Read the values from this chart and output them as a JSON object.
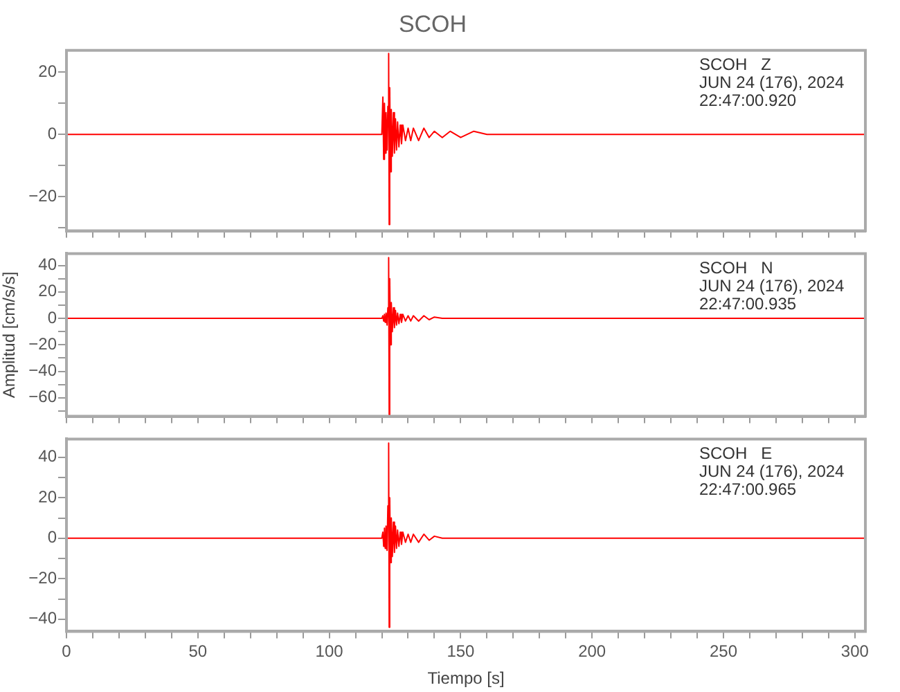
{
  "chart_data": [
    {
      "type": "line",
      "title": "SCOH",
      "grid": false,
      "tick_labels": "y",
      "x": [
        0,
        10,
        20,
        30,
        40,
        50,
        60,
        70,
        80,
        90,
        100,
        110,
        118,
        120,
        120.4,
        120.7,
        121,
        121.3,
        121.6,
        122,
        122.3,
        122.6,
        122.8,
        123,
        123.3,
        123.6,
        124,
        124.4,
        124.8,
        125.2,
        125.6,
        126,
        126.5,
        127,
        127.5,
        128,
        129,
        130,
        131,
        132,
        134,
        136,
        138,
        140,
        143,
        146,
        150,
        155,
        160,
        170,
        180,
        200,
        220,
        240,
        260,
        280,
        300,
        304
      ],
      "series": [
        {
          "color": "#ff0000",
          "values": [
            0,
            0,
            0,
            0,
            0,
            0,
            0,
            0,
            0,
            0,
            0,
            0,
            0,
            0,
            12,
            -8,
            10,
            -6,
            7,
            -5,
            9,
            26,
            -29,
            15,
            -12,
            8,
            -7,
            7,
            -6,
            5,
            -5,
            4,
            -4,
            3,
            -3,
            3,
            -2,
            2,
            -2,
            2,
            -2,
            2,
            -1,
            1,
            -1,
            1,
            -1,
            1,
            0,
            0,
            0,
            0,
            0,
            0,
            0,
            0,
            0,
            0
          ]
        }
      ],
      "xlim": [
        0,
        304
      ],
      "xticks": [
        0,
        {
          "value": 10,
          "label": null
        },
        {
          "value": 20,
          "label": null
        },
        {
          "value": 30,
          "label": null
        },
        {
          "value": 40,
          "label": null
        },
        50,
        {
          "value": 60,
          "label": null
        },
        {
          "value": 70,
          "label": null
        },
        {
          "value": 80,
          "label": null
        },
        {
          "value": 90,
          "label": null
        },
        100,
        {
          "value": 110,
          "label": null
        },
        {
          "value": 120,
          "label": null
        },
        {
          "value": 130,
          "label": null
        },
        {
          "value": 140,
          "label": null
        },
        150,
        {
          "value": 160,
          "label": null
        },
        {
          "value": 170,
          "label": null
        },
        {
          "value": 180,
          "label": null
        },
        {
          "value": 190,
          "label": null
        },
        200,
        {
          "value": 210,
          "label": null
        },
        {
          "value": 220,
          "label": null
        },
        {
          "value": 230,
          "label": null
        },
        {
          "value": 240,
          "label": null
        },
        250,
        {
          "value": 260,
          "label": null
        },
        {
          "value": 270,
          "label": null
        },
        {
          "value": 280,
          "label": null
        },
        {
          "value": 290,
          "label": null
        },
        300
      ],
      "ylim": [
        -31,
        27
      ],
      "yticks": [
        {
          "value": -30,
          "label": null
        },
        -20,
        {
          "value": -10,
          "label": null
        },
        0,
        {
          "value": 10,
          "label": null
        },
        20
      ],
      "annotations": [
        "SCOH   Z",
        "JUN 24 (176), 2024",
        "22:47:00.920"
      ]
    },
    {
      "type": "line",
      "ylabel": "Amplitud [cm/s/s]",
      "grid": false,
      "tick_labels": "y",
      "x": [
        0,
        10,
        20,
        30,
        40,
        50,
        60,
        70,
        80,
        90,
        100,
        110,
        118,
        120,
        120.4,
        120.7,
        121,
        121.3,
        121.6,
        122,
        122.3,
        122.6,
        122.8,
        123,
        123.3,
        123.6,
        124,
        124.4,
        124.8,
        125.2,
        125.6,
        126,
        126.5,
        127,
        127.5,
        128,
        129,
        130,
        131,
        132,
        134,
        136,
        138,
        140,
        143,
        146,
        150,
        155,
        160,
        170,
        180,
        200,
        220,
        240,
        260,
        280,
        300,
        304
      ],
      "series": [
        {
          "color": "#ff0000",
          "values": [
            0,
            0,
            0,
            0,
            0,
            0,
            0,
            0,
            0,
            0,
            0,
            0,
            0,
            0,
            2,
            -2,
            3,
            -3,
            4,
            -5,
            8,
            46,
            -73,
            30,
            -20,
            12,
            -10,
            8,
            -7,
            6,
            -5,
            4,
            -4,
            3,
            -3,
            3,
            -2,
            2,
            -2,
            2,
            -2,
            2,
            -1,
            1,
            0,
            0,
            0,
            0,
            0,
            0,
            0,
            0,
            0,
            0,
            0,
            0,
            0,
            0
          ]
        }
      ],
      "xlim": [
        0,
        304
      ],
      "xticks": [
        0,
        {
          "value": 10,
          "label": null
        },
        {
          "value": 20,
          "label": null
        },
        {
          "value": 30,
          "label": null
        },
        {
          "value": 40,
          "label": null
        },
        50,
        {
          "value": 60,
          "label": null
        },
        {
          "value": 70,
          "label": null
        },
        {
          "value": 80,
          "label": null
        },
        {
          "value": 90,
          "label": null
        },
        100,
        {
          "value": 110,
          "label": null
        },
        {
          "value": 120,
          "label": null
        },
        {
          "value": 130,
          "label": null
        },
        {
          "value": 140,
          "label": null
        },
        150,
        {
          "value": 160,
          "label": null
        },
        {
          "value": 170,
          "label": null
        },
        {
          "value": 180,
          "label": null
        },
        {
          "value": 190,
          "label": null
        },
        200,
        {
          "value": 210,
          "label": null
        },
        {
          "value": 220,
          "label": null
        },
        {
          "value": 230,
          "label": null
        },
        {
          "value": 240,
          "label": null
        },
        250,
        {
          "value": 260,
          "label": null
        },
        {
          "value": 270,
          "label": null
        },
        {
          "value": 280,
          "label": null
        },
        {
          "value": 290,
          "label": null
        },
        300
      ],
      "ylim": [
        -74,
        49
      ],
      "yticks": [
        {
          "value": -70,
          "label": null
        },
        -60,
        {
          "value": -50,
          "label": null
        },
        -40,
        {
          "value": -30,
          "label": null
        },
        -20,
        {
          "value": -10,
          "label": null
        },
        0,
        {
          "value": 10,
          "label": null
        },
        20,
        {
          "value": 30,
          "label": null
        },
        40
      ],
      "annotations": [
        "SCOH   N",
        "JUN 24 (176), 2024",
        "22:47:00.935"
      ]
    },
    {
      "type": "line",
      "xlabel": "Tiempo [s]",
      "grid": false,
      "x": [
        0,
        10,
        20,
        30,
        40,
        50,
        60,
        70,
        80,
        90,
        100,
        110,
        118,
        120,
        120.4,
        120.7,
        121,
        121.3,
        121.6,
        122,
        122.3,
        122.6,
        122.8,
        123,
        123.3,
        123.6,
        124,
        124.4,
        124.8,
        125.2,
        125.6,
        126,
        126.5,
        127,
        127.5,
        128,
        129,
        130,
        131,
        132,
        134,
        136,
        138,
        140,
        143,
        146,
        150,
        155,
        160,
        170,
        180,
        200,
        220,
        240,
        260,
        280,
        300,
        304
      ],
      "series": [
        {
          "color": "#ff0000",
          "values": [
            0,
            0,
            0,
            0,
            0,
            0,
            0,
            0,
            0,
            0,
            0,
            0,
            0,
            0,
            3,
            -4,
            5,
            -5,
            6,
            -6,
            16,
            47,
            -44,
            20,
            -12,
            10,
            -9,
            8,
            -7,
            6,
            -5,
            4,
            -4,
            3,
            -3,
            3,
            -2,
            2,
            -2,
            2,
            -2,
            2,
            -1,
            1,
            0,
            0,
            0,
            0,
            0,
            0,
            0,
            0,
            0,
            0,
            0,
            0,
            0,
            0
          ]
        }
      ],
      "xlim": [
        0,
        304
      ],
      "xticks": [
        0,
        {
          "value": 10,
          "label": null
        },
        {
          "value": 20,
          "label": null
        },
        {
          "value": 30,
          "label": null
        },
        {
          "value": 40,
          "label": null
        },
        50,
        {
          "value": 60,
          "label": null
        },
        {
          "value": 70,
          "label": null
        },
        {
          "value": 80,
          "label": null
        },
        {
          "value": 90,
          "label": null
        },
        100,
        {
          "value": 110,
          "label": null
        },
        {
          "value": 120,
          "label": null
        },
        {
          "value": 130,
          "label": null
        },
        {
          "value": 140,
          "label": null
        },
        150,
        {
          "value": 160,
          "label": null
        },
        {
          "value": 170,
          "label": null
        },
        {
          "value": 180,
          "label": null
        },
        {
          "value": 190,
          "label": null
        },
        200,
        {
          "value": 210,
          "label": null
        },
        {
          "value": 220,
          "label": null
        },
        {
          "value": 230,
          "label": null
        },
        {
          "value": 240,
          "label": null
        },
        250,
        {
          "value": 260,
          "label": null
        },
        {
          "value": 270,
          "label": null
        },
        {
          "value": 280,
          "label": null
        },
        {
          "value": 290,
          "label": null
        },
        300
      ],
      "ylim": [
        -46,
        49
      ],
      "yticks": [
        -40,
        {
          "value": -30,
          "label": null
        },
        -20,
        {
          "value": -10,
          "label": null
        },
        0,
        {
          "value": 10,
          "label": null
        },
        20,
        {
          "value": 30,
          "label": null
        },
        40
      ],
      "annotations": [
        "SCOH   E",
        "JUN 24 (176), 2024",
        "22:47:00.965"
      ]
    }
  ]
}
